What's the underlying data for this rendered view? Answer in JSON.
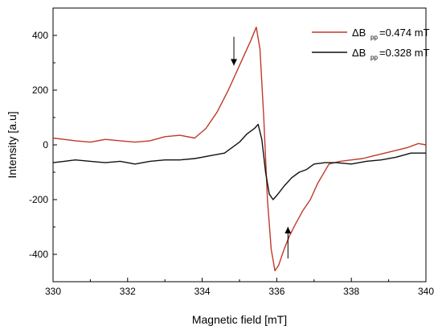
{
  "chart_data": {
    "type": "line",
    "xlabel": "Magnetic field [mT]",
    "ylabel": "Intensity [a.u]",
    "xlim": [
      330,
      340
    ],
    "ylim": [
      -500,
      500
    ],
    "xticks": [
      "330",
      "332",
      "334",
      "336",
      "338",
      "340"
    ],
    "yticks": [
      "400",
      "200",
      "0",
      "-200",
      "-400"
    ],
    "grid": false,
    "legend_position": "top-right",
    "series": [
      {
        "name": "0.474 mT",
        "legend_prefix": "ΔB",
        "legend_subscript": "pp",
        "legend_value": "=0.474 mT",
        "color": "#c0392b",
        "x": [
          330,
          330.3,
          330.6,
          331,
          331.4,
          331.8,
          332.2,
          332.6,
          333,
          333.4,
          333.8,
          334.1,
          334.4,
          334.7,
          334.9,
          335.1,
          335.3,
          335.45,
          335.55,
          335.65,
          335.75,
          335.85,
          335.95,
          336.05,
          336.2,
          336.35,
          336.5,
          336.7,
          336.9,
          337.1,
          337.4,
          337.7,
          338,
          338.3,
          338.6,
          338.9,
          339.2,
          339.5,
          339.8,
          340
        ],
        "y": [
          25,
          20,
          15,
          10,
          20,
          15,
          10,
          15,
          30,
          35,
          25,
          60,
          120,
          200,
          260,
          320,
          380,
          430,
          350,
          100,
          -200,
          -380,
          -460,
          -440,
          -380,
          -330,
          -290,
          -240,
          -200,
          -140,
          -70,
          -60,
          -55,
          -50,
          -40,
          -30,
          -20,
          -10,
          5,
          0
        ]
      },
      {
        "name": "0.328 mT",
        "legend_prefix": "ΔB",
        "legend_subscript": "pp",
        "legend_value": "=0.328 mT",
        "color": "#111111",
        "x": [
          330,
          330.3,
          330.6,
          331,
          331.4,
          331.8,
          332.2,
          332.6,
          333,
          333.4,
          333.8,
          334.2,
          334.6,
          335,
          335.2,
          335.4,
          335.5,
          335.6,
          335.7,
          335.8,
          335.9,
          336.0,
          336.2,
          336.4,
          336.6,
          336.8,
          337,
          337.3,
          337.6,
          338,
          338.4,
          338.8,
          339.2,
          339.6,
          340
        ],
        "y": [
          -65,
          -60,
          -55,
          -60,
          -65,
          -60,
          -70,
          -60,
          -55,
          -55,
          -50,
          -40,
          -30,
          10,
          40,
          60,
          75,
          20,
          -100,
          -180,
          -200,
          -185,
          -150,
          -120,
          -100,
          -90,
          -70,
          -65,
          -65,
          -70,
          -60,
          -55,
          -45,
          -30,
          -30
        ]
      }
    ],
    "annotations": [
      {
        "type": "arrow",
        "direction": "down",
        "x": 334.85,
        "y_from": 395,
        "y_to": 290
      },
      {
        "type": "arrow",
        "direction": "up",
        "x": 336.3,
        "y_from": -415,
        "y_to": -300
      }
    ]
  }
}
